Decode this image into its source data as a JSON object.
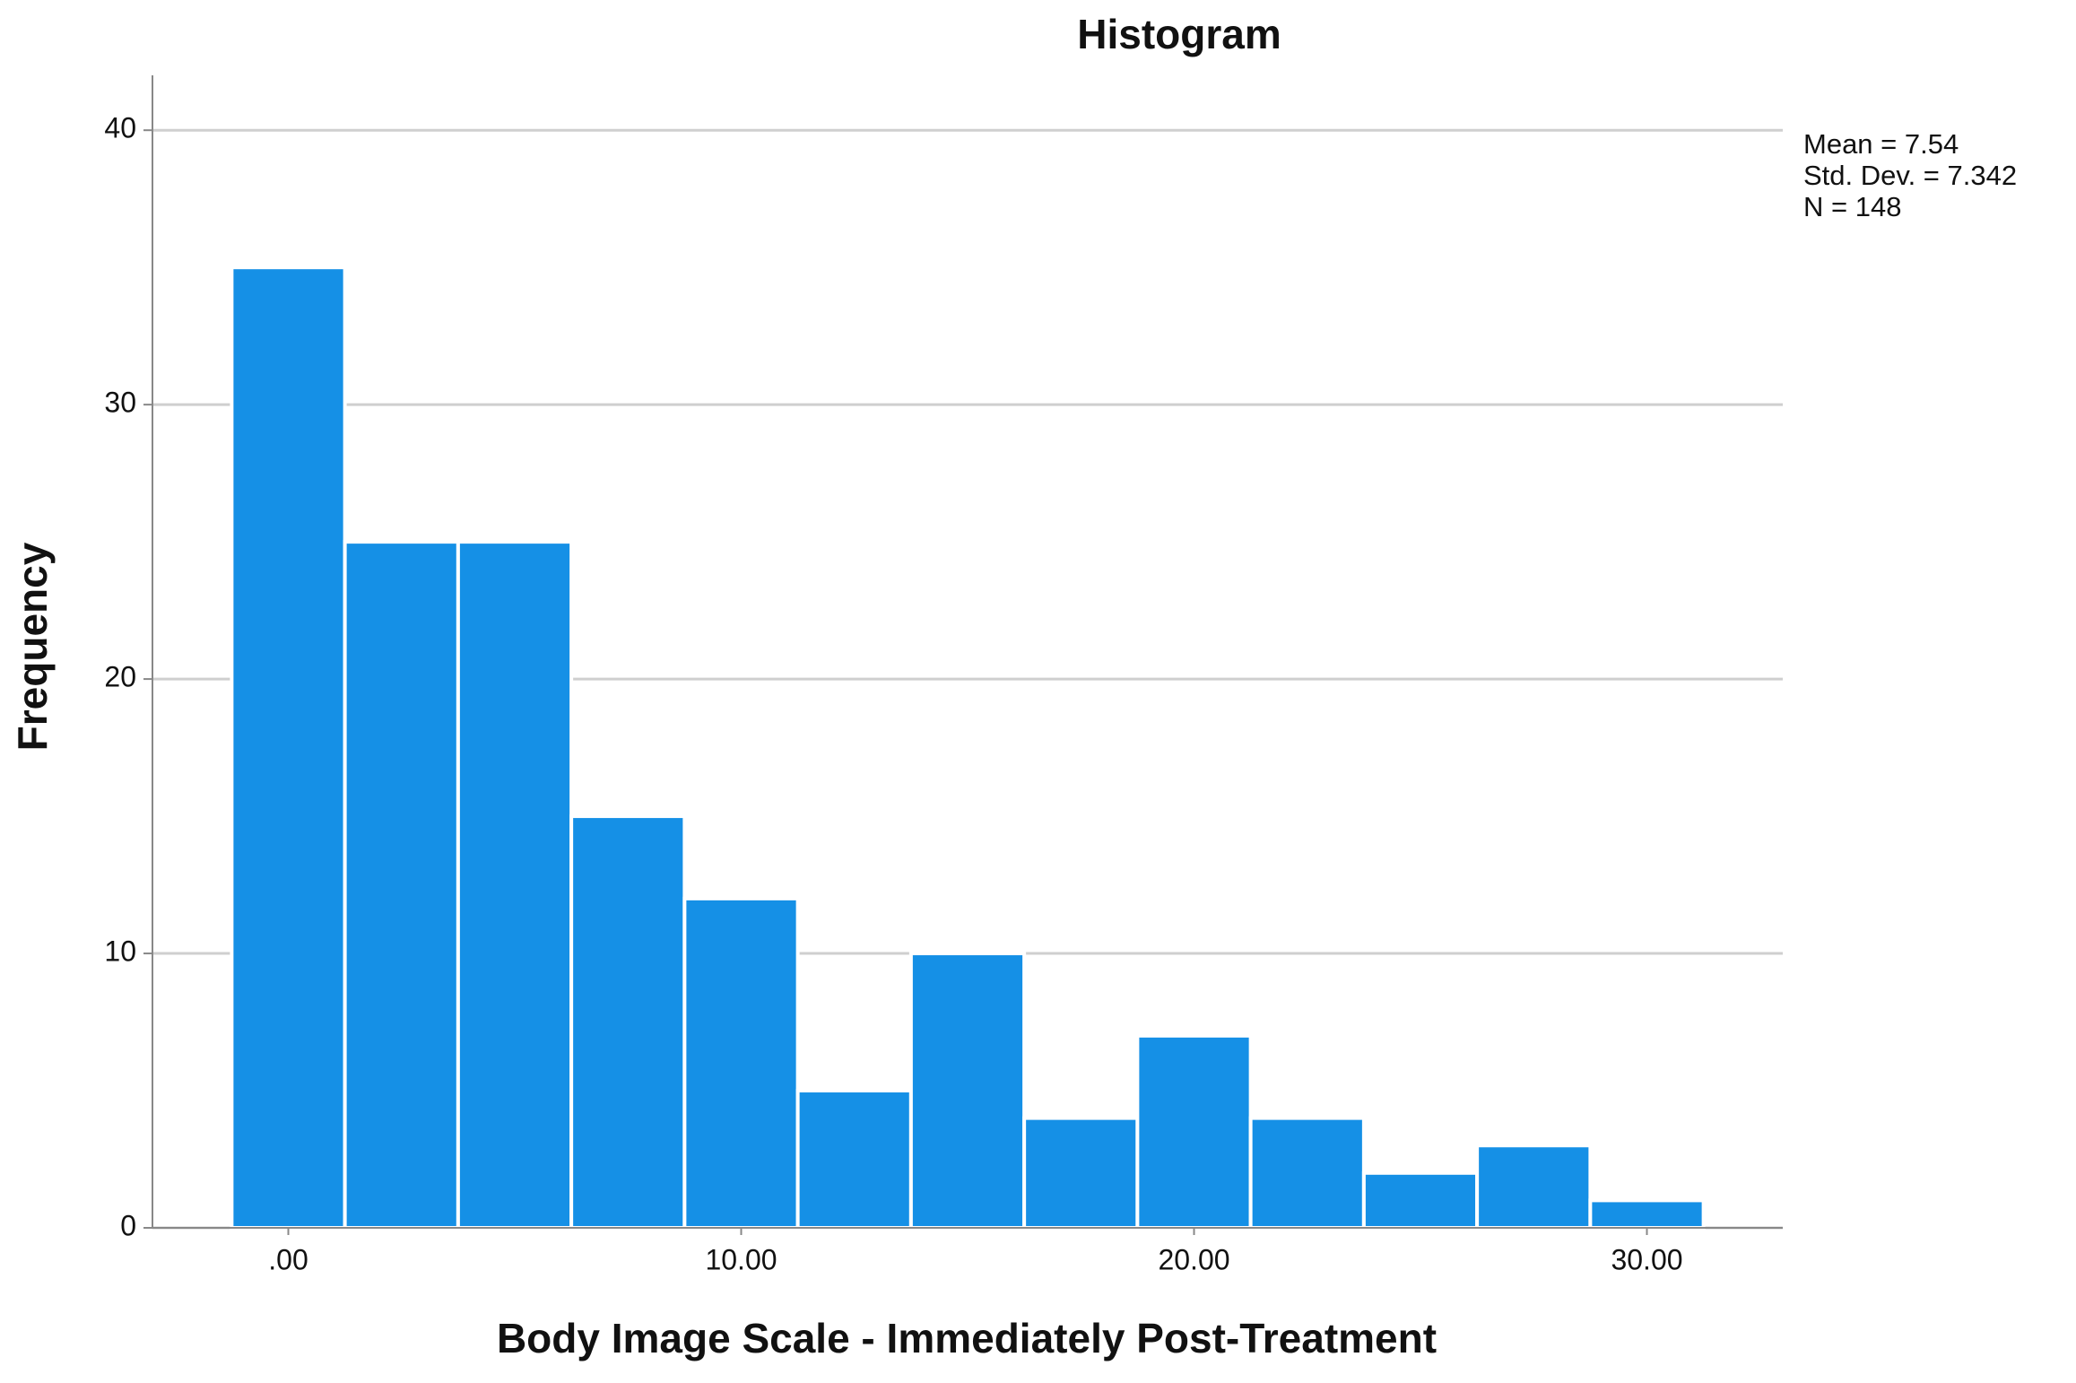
{
  "chart_data": {
    "type": "histogram",
    "title": "Histogram",
    "x_label": "Body Image Scale - Immediately Post-Treatment",
    "y_label": "Frequency",
    "bins": [
      -1.25,
      1.25,
      3.75,
      6.25,
      8.75,
      11.25,
      13.75,
      16.25,
      18.75,
      21.25,
      23.75,
      26.25,
      28.75,
      31.25
    ],
    "values": [
      35,
      25,
      25,
      15,
      12,
      5,
      10,
      4,
      7,
      4,
      2,
      3,
      1
    ],
    "color": "#1590e6",
    "xlim": [
      -3,
      33
    ],
    "xticks": [
      {
        "value": 0,
        "label": ".00"
      },
      {
        "value": 10,
        "label": "10.00"
      },
      {
        "value": 20,
        "label": "20.00"
      },
      {
        "value": 30,
        "label": "30.00"
      }
    ],
    "ylim": [
      0,
      42
    ],
    "yticks": [
      0,
      10,
      20,
      30,
      40
    ],
    "grid": true,
    "annotations": [
      "Mean = 7.54",
      "Std. Dev. = 7.342",
      "N = 148"
    ]
  }
}
